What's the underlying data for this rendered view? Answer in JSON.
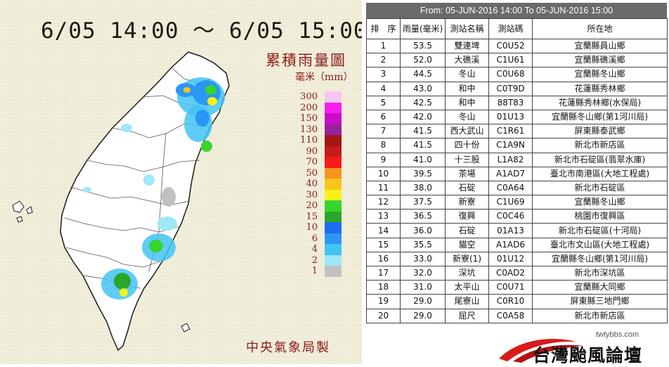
{
  "map": {
    "title": "6/05 14:00 ～ 6/05 15:00",
    "subtitle": "累積雨量圖",
    "unit": "毫米（mm）",
    "credit": "中央氣象局製",
    "legend": [
      {
        "label": "300",
        "color": "#f7c5f2"
      },
      {
        "label": "200",
        "color": "#f51df0"
      },
      {
        "label": "150",
        "color": "#c60fc7"
      },
      {
        "label": "130",
        "color": "#95239a"
      },
      {
        "label": "110",
        "color": "#a31717"
      },
      {
        "label": "90",
        "color": "#c61b1b"
      },
      {
        "label": "70",
        "color": "#f71a18"
      },
      {
        "label": "50",
        "color": "#f89420"
      },
      {
        "label": "40",
        "color": "#f7c51e"
      },
      {
        "label": "30",
        "color": "#f6f317"
      },
      {
        "label": "20",
        "color": "#37d52e"
      },
      {
        "label": "15",
        "color": "#2aa62a"
      },
      {
        "label": "10",
        "color": "#1c6bf0"
      },
      {
        "label": "6",
        "color": "#2a97f5"
      },
      {
        "label": "4",
        "color": "#43c3f3"
      },
      {
        "label": "2",
        "color": "#9ee8f7"
      },
      {
        "label": "1",
        "color": "#c1c1c1"
      }
    ]
  },
  "table": {
    "title": "From: 05-JUN-2016 14:00 To 05-JUN-2016 15:00",
    "headers": [
      "排　序",
      "雨量(毫米)",
      "測站名稱",
      "測站碼",
      "所在地"
    ],
    "rows": [
      [
        "1",
        "53.5",
        "雙連埤",
        "C0U52",
        "宜蘭縣員山鄉"
      ],
      [
        "2",
        "52.0",
        "大礁溪",
        "C1U61",
        "宜蘭縣礁溪鄉"
      ],
      [
        "3",
        "44.5",
        "冬山",
        "C0U68",
        "宜蘭縣冬山鄉"
      ],
      [
        "4",
        "43.0",
        "和中",
        "C0T9D",
        "花蓮縣秀林鄉"
      ],
      [
        "5",
        "42.5",
        "和中",
        "88T83",
        "花蓮縣秀林鄉(水保局)"
      ],
      [
        "6",
        "42.0",
        "冬山",
        "01U13",
        "宜蘭縣冬山鄉(第1河川局)"
      ],
      [
        "7",
        "41.5",
        "西大武山",
        "C1R61",
        "屏東縣泰武鄉"
      ],
      [
        "8",
        "41.5",
        "四十份",
        "C1A9N",
        "新北市新店區"
      ],
      [
        "9",
        "41.0",
        "十三股",
        "L1A82",
        "新北市石碇區(翡翠水庫)"
      ],
      [
        "10",
        "39.5",
        "茶場",
        "A1AD7",
        "臺北市南港區(大地工程處)"
      ],
      [
        "11",
        "38.0",
        "石碇",
        "C0A64",
        "新北市石碇區"
      ],
      [
        "12",
        "37.5",
        "新寮",
        "C1U69",
        "宜蘭縣冬山鄉"
      ],
      [
        "13",
        "36.5",
        "復興",
        "C0C46",
        "桃園市復興區"
      ],
      [
        "14",
        "36.0",
        "石碇",
        "01A13",
        "新北市石碇區(十河局)"
      ],
      [
        "15",
        "35.5",
        "貓空",
        "A1AD6",
        "臺北市文山區(大地工程處)"
      ],
      [
        "16",
        "33.0",
        "新寮(1)",
        "01U12",
        "宜蘭縣冬山鄉(第1河川局)"
      ],
      [
        "17",
        "32.0",
        "深坑",
        "C0AD2",
        "新北市深坑區"
      ],
      [
        "18",
        "31.0",
        "太平山",
        "C0U71",
        "宜蘭縣大同鄉"
      ],
      [
        "19",
        "29.0",
        "尾寮山",
        "C0R10",
        "屏東縣三地門鄉"
      ],
      [
        "20",
        "29.0",
        "屈尺",
        "C0A58",
        "新北市新店區"
      ]
    ]
  },
  "logo": {
    "url": "twtybbs.com",
    "name": "台灣颱風論壇"
  }
}
